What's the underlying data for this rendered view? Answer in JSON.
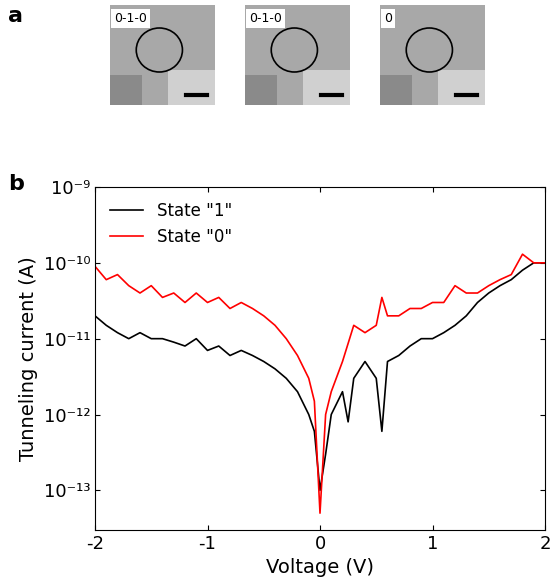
{
  "panel_labels": [
    "a",
    "b"
  ],
  "images": [
    {
      "label": "0-1-0"
    },
    {
      "label": "0-1-0"
    },
    {
      "label": "0"
    }
  ],
  "chart_data": {
    "type": "line",
    "x_label": "Voltage (V)",
    "y_label": "Tunneling current (A)",
    "log": "y",
    "xlim": [
      -2,
      2
    ],
    "xticks": [
      -2,
      -1,
      0,
      1,
      2
    ],
    "ylim": [
      3e-14,
      1e-09
    ],
    "yticks": [
      {
        "value": 1e-13,
        "label": "10⁻¹³"
      },
      {
        "value": 1e-12,
        "label": "10⁻¹²"
      },
      {
        "value": 1e-11,
        "label": "10⁻¹¹"
      },
      {
        "value": 1e-10,
        "label": "10⁻¹⁰"
      },
      {
        "value": 1e-09,
        "label": "10⁻⁹"
      }
    ],
    "legend": "upper left",
    "series": [
      {
        "name": "State \"1\"",
        "color": "#000000",
        "x": [
          -2.0,
          -1.9,
          -1.8,
          -1.7,
          -1.6,
          -1.5,
          -1.4,
          -1.3,
          -1.2,
          -1.1,
          -1.0,
          -0.9,
          -0.8,
          -0.7,
          -0.6,
          -0.5,
          -0.4,
          -0.3,
          -0.2,
          -0.1,
          -0.05,
          0.0,
          0.05,
          0.1,
          0.2,
          0.25,
          0.3,
          0.4,
          0.5,
          0.55,
          0.6,
          0.7,
          0.8,
          0.9,
          1.0,
          1.1,
          1.2,
          1.3,
          1.4,
          1.5,
          1.6,
          1.7,
          1.8,
          1.9,
          2.0
        ],
        "values": [
          2e-11,
          1.5e-11,
          1.2e-11,
          1e-11,
          1.2e-11,
          1e-11,
          1e-11,
          9e-12,
          8e-12,
          1e-11,
          7e-12,
          8e-12,
          6e-12,
          7e-12,
          6e-12,
          5e-12,
          4e-12,
          3e-12,
          2e-12,
          1e-12,
          6e-13,
          1e-13,
          3e-13,
          1e-12,
          2e-12,
          8e-13,
          3e-12,
          5e-12,
          3e-12,
          6e-13,
          5e-12,
          6e-12,
          8e-12,
          1e-11,
          1e-11,
          1.2e-11,
          1.5e-11,
          2e-11,
          3e-11,
          4e-11,
          5e-11,
          6e-11,
          8e-11,
          1e-10,
          1e-10
        ]
      },
      {
        "name": "State \"0\"",
        "color": "#ff0000",
        "x": [
          -2.0,
          -1.9,
          -1.8,
          -1.7,
          -1.6,
          -1.5,
          -1.4,
          -1.3,
          -1.2,
          -1.1,
          -1.0,
          -0.9,
          -0.8,
          -0.7,
          -0.6,
          -0.5,
          -0.4,
          -0.3,
          -0.2,
          -0.1,
          -0.05,
          0.0,
          0.05,
          0.1,
          0.2,
          0.3,
          0.4,
          0.5,
          0.55,
          0.6,
          0.7,
          0.8,
          0.9,
          1.0,
          1.1,
          1.2,
          1.3,
          1.4,
          1.5,
          1.6,
          1.7,
          1.8,
          1.9,
          2.0
        ],
        "values": [
          9e-11,
          6e-11,
          7e-11,
          5e-11,
          4e-11,
          5e-11,
          3.5e-11,
          4e-11,
          3e-11,
          4e-11,
          3e-11,
          3.5e-11,
          2.5e-11,
          3e-11,
          2.5e-11,
          2e-11,
          1.5e-11,
          1e-11,
          6e-12,
          3e-12,
          1.5e-12,
          5e-14,
          1e-12,
          2e-12,
          5e-12,
          1.5e-11,
          1.2e-11,
          1.5e-11,
          3.5e-11,
          2e-11,
          2e-11,
          2.5e-11,
          2.5e-11,
          3e-11,
          3e-11,
          5e-11,
          4e-11,
          4e-11,
          5e-11,
          6e-11,
          7e-11,
          1.3e-10,
          1e-10,
          1e-10
        ]
      }
    ]
  }
}
